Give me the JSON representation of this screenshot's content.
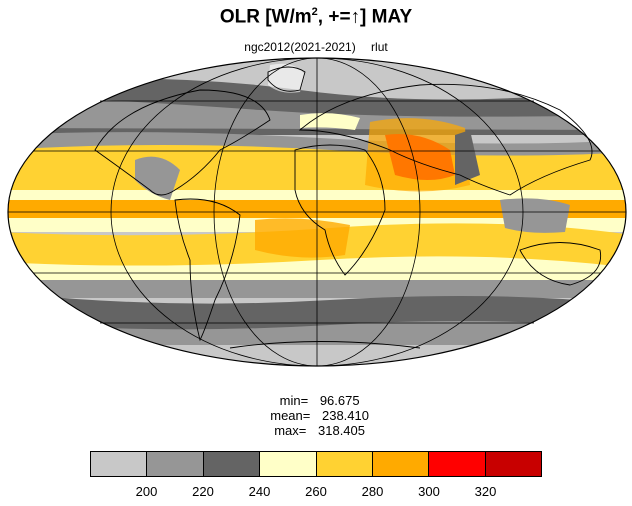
{
  "title": {
    "main": "OLR [W/m",
    "superscript": "2",
    "rest": ", +=↑] MAY"
  },
  "subtitle": {
    "left": "ngc2012(2021-2021)",
    "right": "rlut"
  },
  "stats": {
    "min_label": "min=",
    "min_value": "96.675",
    "mean_label": "mean=",
    "mean_value": "238.410",
    "max_label": "max=",
    "max_value": "318.405"
  },
  "colorbar": {
    "colors": [
      "#c8c8c8",
      "#969696",
      "#646464",
      "#ffffc8",
      "#ffd232",
      "#ffaa00",
      "#ff0000",
      "#c80000"
    ],
    "tick_labels": [
      "200",
      "220",
      "240",
      "260",
      "280",
      "300",
      "320"
    ]
  },
  "map": {
    "projection": "mollweide",
    "variable": "rlut"
  }
}
